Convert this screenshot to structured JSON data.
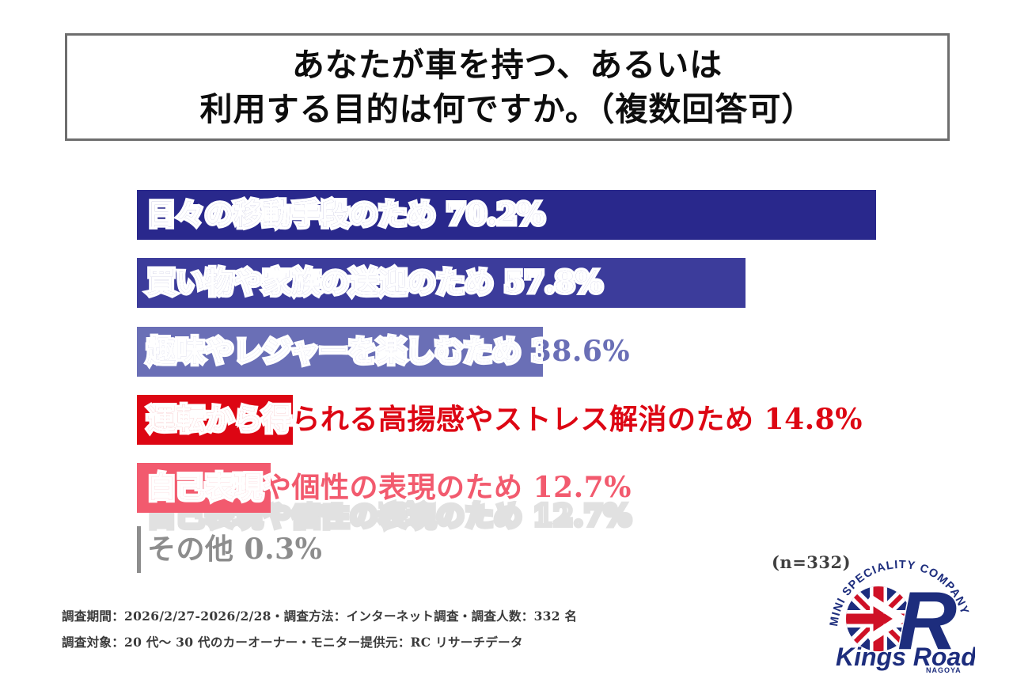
{
  "title": {
    "line1": "あなたが車を持つ、あるいは",
    "line2": "利用する目的は何ですか。（複数回答可）"
  },
  "chart_data": {
    "type": "bar",
    "orientation": "horizontal",
    "unit": "%",
    "xlim": [
      0,
      72
    ],
    "grid": false,
    "title": "あなたが車を持つ、あるいは利用する目的は何ですか。（複数回答可）",
    "categories": [
      "日々の移動手段のため",
      "買い物や家族の送迎のため",
      "趣味やレジャーを楽しむため",
      "運転から得られる高揚感やストレス解消のため",
      "自己表現や個性の表現のため",
      "その他"
    ],
    "values": [
      70.2,
      57.8,
      38.6,
      14.8,
      12.7,
      0.3
    ],
    "bars": [
      {
        "label": "日々の移動手段のため",
        "value": 70.2,
        "display": "日々の移動手段のため  70.2%",
        "color": "#29288c"
      },
      {
        "label": "買い物や家族の送迎のため",
        "value": 57.8,
        "display": "買い物や家族の送迎のため  57.8%",
        "color": "#3c3c9b"
      },
      {
        "label": "趣味やレジャーを楽しむため",
        "value": 38.6,
        "display": "趣味やレジャーを楽しむため  38.6%",
        "color": "#6a6fb6"
      },
      {
        "label": "運転から得られる高揚感やストレス解消のため",
        "value": 14.8,
        "display": "運転から得られる高揚感やストレス解消のため  14.8%",
        "color": "#dd0613"
      },
      {
        "label": "自己表現や個性の表現のため",
        "value": 12.7,
        "display": "自己表現や個性の表現のため  12.7%",
        "color": "#f25a6e"
      },
      {
        "label": "その他",
        "value": 0.3,
        "display": "その他  0.3%",
        "color": "#8d8d8d"
      }
    ],
    "sample_note": "(n=332)"
  },
  "footer": {
    "line1": "調査期間：2026/2/27-2026/2/28・調査方法：インターネット調査・調査人数：332 名",
    "line2": "調査対象：20 代～ 30 代のカーオーナー・モニター提供元：RC リサーチデータ"
  },
  "logo": {
    "arc_text": "MINI SPECIALITY COMPANY",
    "monogram": "R",
    "name": "Kings Road",
    "city": "NAGOYA",
    "navy": "#1d2d7d",
    "red": "#cf1126"
  }
}
